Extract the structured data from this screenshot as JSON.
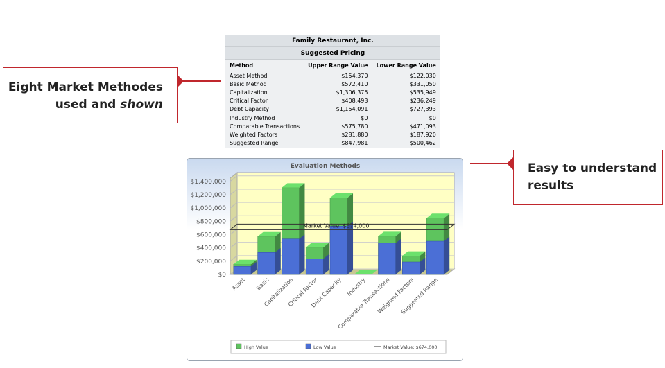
{
  "callouts": [
    {
      "line_1": "Eight Market Methodes",
      "line_2": "used and",
      "line_2_emphasis": "shown"
    },
    {
      "line_1": "Easy to understand",
      "line_2": "results"
    }
  ],
  "table": {
    "title": "Family Restaurant, Inc.",
    "subtitle": "Suggested Pricing",
    "columns": [
      "Method",
      "Upper Range Value",
      "Lower Range Value"
    ],
    "rows": [
      [
        "Asset Method",
        "$154,370",
        "$122,030"
      ],
      [
        "Basic Method",
        "$572,410",
        "$331,050"
      ],
      [
        "Capitalization",
        "$1,306,375",
        "$535,949"
      ],
      [
        "Critical Factor",
        "$408,493",
        "$236,249"
      ],
      [
        "Debt Capacity",
        "$1,154,091",
        "$727,393"
      ],
      [
        "Industry Method",
        "$0",
        "$0"
      ],
      [
        "Comparable Transactions",
        "$575,780",
        "$471,093"
      ],
      [
        "Weighted Factors",
        "$281,880",
        "$187,920"
      ],
      [
        "Suggested Range",
        "$847,981",
        "$500,462"
      ]
    ]
  },
  "chart_data": {
    "type": "bar",
    "title": "Evaluation Methods",
    "categories": [
      "Asset",
      "Basic",
      "Capitalization",
      "Critical Factor",
      "Debt Capacity",
      "Industry",
      "Comparable Transactions",
      "Weighted Factors",
      "Suggested Range"
    ],
    "series": [
      {
        "name": "High Value",
        "color": "#5ec45e",
        "values": [
          154370,
          572410,
          1306375,
          408493,
          1154091,
          0,
          575780,
          281880,
          847981
        ]
      },
      {
        "name": "Low Value",
        "color": "#4b6fd6",
        "values": [
          122030,
          331050,
          535949,
          236249,
          727393,
          0,
          471093,
          187920,
          500462
        ]
      }
    ],
    "market_value": {
      "value": 674000,
      "label": "Market Value:  $674,000"
    },
    "ylim": [
      0,
      1450000
    ],
    "yticks": [
      {
        "value": 0,
        "label": "$0"
      },
      {
        "value": 200000,
        "label": "$200,000"
      },
      {
        "value": 400000,
        "label": "$400,000"
      },
      {
        "value": 600000,
        "label": "$600,000"
      },
      {
        "value": 800000,
        "label": "$800,000"
      },
      {
        "value": 1000000,
        "label": "$1,000,000"
      },
      {
        "value": 1200000,
        "label": "$1,200,000"
      },
      {
        "value": 1400000,
        "label": "$1,400,000"
      }
    ],
    "grid": true
  }
}
